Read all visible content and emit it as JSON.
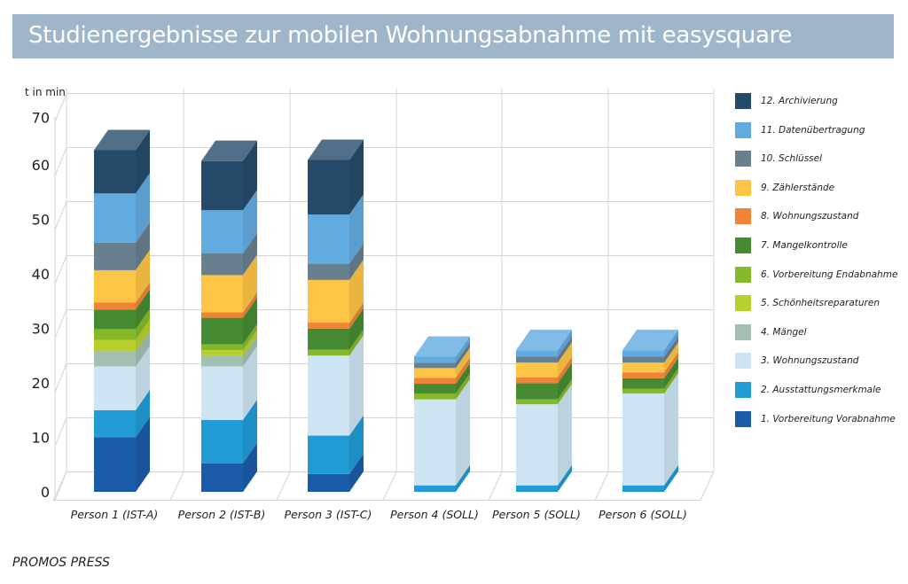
{
  "title": "Studienergebnisse zur mobilen Wohnungsabnahme mit easysquare",
  "footer": "PROMOS PRESS",
  "chart_data": {
    "type": "bar",
    "stacked": true,
    "three_d": true,
    "ylabel": "t in min",
    "ylim": [
      0,
      70
    ],
    "yticks": [
      0,
      10,
      20,
      30,
      40,
      50,
      60,
      70
    ],
    "grid": true,
    "legend_position": "right",
    "categories": [
      "Person 1 (IST-A)",
      "Person 2 (IST-B)",
      "Person 3 (IST-C)",
      "Person 4 (SOLL)",
      "Person 5 (SOLL)",
      "Person 6 (SOLL)"
    ],
    "series": [
      {
        "name": "1. Vorbereitung Vorabnahme",
        "color": "#1a5ca8",
        "values": [
          10.1,
          5.3,
          3.3,
          0,
          0,
          0
        ]
      },
      {
        "name": "2. Ausstattungsmerkmale",
        "color": "#219bd6",
        "values": [
          5.0,
          8.0,
          7.1,
          1.2,
          1.2,
          1.2
        ]
      },
      {
        "name": "3. Wohnungszustand",
        "color": "#cde4f2",
        "values": [
          8.1,
          9.9,
          14.8,
          15.9,
          15.0,
          17.0
        ]
      },
      {
        "name": "4. Mängel",
        "color": "#a3bfb1",
        "values": [
          2.8,
          1.9,
          0,
          0,
          0,
          0
        ]
      },
      {
        "name": "5. Schönheitsreparaturen",
        "color": "#b8d02e",
        "values": [
          2.1,
          1.1,
          0,
          0,
          0,
          0
        ]
      },
      {
        "name": "6. Vorbereitung Endabnahme",
        "color": "#86b927",
        "values": [
          2.0,
          1.1,
          1.1,
          1.1,
          0.9,
          0.9
        ]
      },
      {
        "name": "7. Mangelkontrolle",
        "color": "#468b33",
        "values": [
          3.6,
          4.9,
          3.9,
          1.8,
          3.0,
          1.9
        ]
      },
      {
        "name": "8. Wohnungszustand",
        "color": "#f08434",
        "values": [
          1.3,
          1.0,
          1.1,
          1.1,
          1.1,
          1.1
        ]
      },
      {
        "name": "9. Zählerstände",
        "color": "#fdc545",
        "values": [
          6.0,
          6.9,
          7.9,
          1.8,
          2.7,
          1.8
        ]
      },
      {
        "name": "10. Schlüssel",
        "color": "#687f8e",
        "values": [
          5.1,
          4.0,
          3.0,
          1.0,
          1.1,
          1.1
        ]
      },
      {
        "name": "11. Datenübertragung",
        "color": "#62abe0",
        "values": [
          9.1,
          8.0,
          9.1,
          1.1,
          1.2,
          1.2
        ]
      },
      {
        "name": "12. Archivierung",
        "color": "#264b6a",
        "values": [
          8.0,
          9.1,
          10.1,
          0,
          0,
          0
        ]
      }
    ]
  }
}
